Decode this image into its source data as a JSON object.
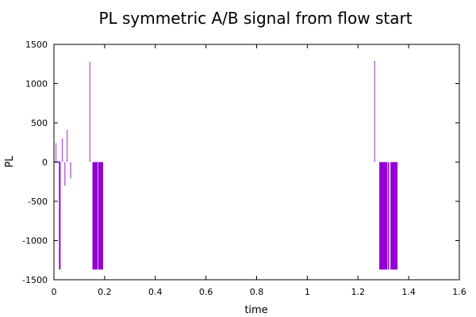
{
  "chart_data": {
    "type": "line",
    "title": "PL symmetric A/B signal from flow start",
    "xlabel": "time",
    "ylabel": "PL",
    "xlim": [
      0,
      1.6
    ],
    "ylim": [
      -1500,
      1500
    ],
    "xticks": [
      0,
      0.2,
      0.4,
      0.6,
      0.8,
      1,
      1.2,
      1.4,
      1.6
    ],
    "xtick_labels": [
      "0",
      "0.2",
      "0.4",
      "0.6",
      "0.8",
      "1",
      "1.2",
      "1.4",
      "1.6"
    ],
    "yticks": [
      -1500,
      -1000,
      -500,
      0,
      500,
      1000,
      1500
    ],
    "ytick_labels": [
      "-1500",
      "-1000",
      "-500",
      "0",
      "500",
      "1000",
      "1500"
    ],
    "grid": false,
    "colors": {
      "light_spike": "#b96bd8",
      "dark_block": "#9400d3",
      "baseline": "#9400d3"
    },
    "spikes": [
      {
        "x": 0.008,
        "y0": 0,
        "y1": 240
      },
      {
        "x": 0.023,
        "y0": 0,
        "y1": -1370
      },
      {
        "x": 0.033,
        "y0": 0,
        "y1": 300
      },
      {
        "x": 0.043,
        "y0": 0,
        "y1": -300
      },
      {
        "x": 0.052,
        "y0": 0,
        "y1": 410
      },
      {
        "x": 0.066,
        "y0": 0,
        "y1": -210
      },
      {
        "x": 0.142,
        "y0": 0,
        "y1": 1280
      },
      {
        "x": 1.266,
        "y0": 0,
        "y1": 1290
      }
    ],
    "blocks": [
      {
        "x_start": 0.152,
        "x_end": 0.172,
        "y_low": -1370,
        "y_high": 0
      },
      {
        "x_start": 0.174,
        "x_end": 0.194,
        "y_low": -1370,
        "y_high": 0
      },
      {
        "x_start": 1.284,
        "x_end": 1.316,
        "y_low": -1370,
        "y_high": 0
      },
      {
        "x_start": 1.318,
        "x_end": 1.322,
        "y_low": -1370,
        "y_high": 0
      },
      {
        "x_start": 1.328,
        "x_end": 1.356,
        "y_low": -1370,
        "y_high": 0
      }
    ],
    "baseline": {
      "x_start": 0,
      "x_end": 0.024,
      "y": 0
    }
  }
}
